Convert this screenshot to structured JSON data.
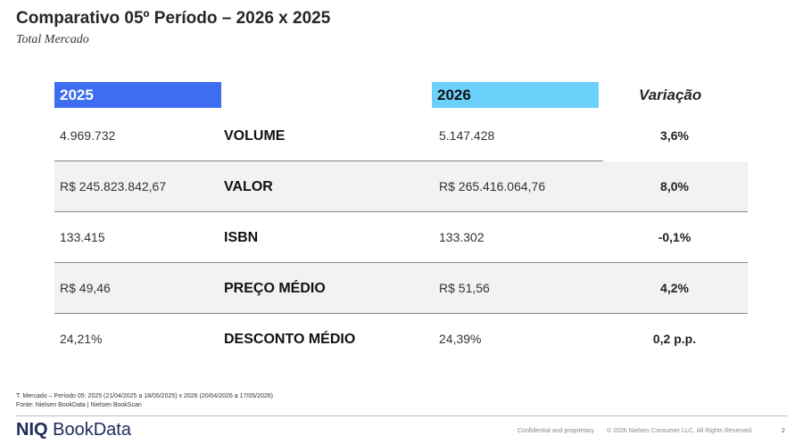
{
  "header": {
    "title": "Comparativo 05º Período – 2026 x 2025",
    "subtitle": "Total Mercado"
  },
  "table": {
    "col_2025": "2025",
    "col_2026": "2026",
    "col_var": "Variação",
    "rows": [
      {
        "v2025": "4.969.732",
        "metric": "VOLUME",
        "v2026": "5.147.428",
        "var": "3,6%"
      },
      {
        "v2025": "R$ 245.823.842,67",
        "metric": "VALOR",
        "v2026": "R$ 265.416.064,76",
        "var": "8,0%"
      },
      {
        "v2025": "133.415",
        "metric": "ISBN",
        "v2026": "133.302",
        "var": "-0,1%"
      },
      {
        "v2025": "R$ 49,46",
        "metric": "PREÇO MÉDIO",
        "v2026": "R$ 51,56",
        "var": "4,2%"
      },
      {
        "v2025": "24,21%",
        "metric": "DESCONTO MÉDIO",
        "v2026": "24,39%",
        "var": "0,2 p.p."
      }
    ]
  },
  "footer": {
    "note": "T. Mercado – Período 05: 2025 (21/04/2025 a 18/05/2025) x 2026 (20/04/2026 a 17/05/2026)",
    "source": "Fonte: Nielsen BookData | Nielsen BookScan",
    "logo_niq": "NIQ",
    "logo_bookdata": "BookData",
    "confidential": "Confidential and proprietary",
    "copyright": "© 2026 Nielsen Consumer LLC. All Rights Reserved.",
    "page": "2"
  },
  "colors": {
    "col_2025_bg": "#3d6ef2",
    "col_2026_bg": "#6bd0fa",
    "row_shade": "#f2f2f2"
  }
}
